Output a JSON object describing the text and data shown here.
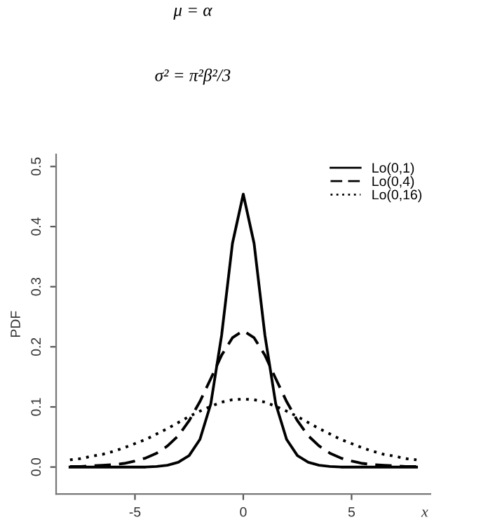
{
  "chart_data": {
    "type": "line",
    "annotations": [
      "μ = α",
      "σ² = π²β²/3"
    ],
    "xlabel": "x",
    "ylabel": "PDF",
    "x": [
      -8,
      -7.5,
      -7,
      -6.5,
      -6,
      -5.5,
      -5,
      -4.5,
      -4,
      -3.5,
      -3,
      -2.5,
      -2,
      -1.5,
      -1,
      -0.5,
      0,
      0.5,
      1,
      1.5,
      2,
      2.5,
      3,
      3.5,
      4,
      4.5,
      5,
      5.5,
      6,
      6.5,
      7,
      7.5,
      8
    ],
    "series": [
      {
        "name": "Lo(0,1)",
        "color": "#000000",
        "line_style": "solid",
        "values": [
          0,
          0,
          0,
          0,
          0,
          0,
          0,
          0,
          0.001,
          0.003,
          0.008,
          0.019,
          0.046,
          0.105,
          0.219,
          0.372,
          0.454,
          0.372,
          0.219,
          0.105,
          0.046,
          0.019,
          0.008,
          0.003,
          0.001,
          0,
          0,
          0,
          0,
          0,
          0,
          0,
          0
        ]
      },
      {
        "name": "Lo(0,4)",
        "color": "#000000",
        "line_style": "dashed",
        "values": [
          0.001,
          0.001,
          0.002,
          0.003,
          0.004,
          0.006,
          0.01,
          0.015,
          0.023,
          0.035,
          0.052,
          0.077,
          0.109,
          0.147,
          0.186,
          0.215,
          0.227,
          0.215,
          0.186,
          0.147,
          0.109,
          0.077,
          0.052,
          0.035,
          0.023,
          0.015,
          0.01,
          0.006,
          0.004,
          0.003,
          0.002,
          0.001,
          0.001
        ]
      },
      {
        "name": "Lo(0,16)",
        "color": "#000000",
        "line_style": "dotted",
        "values": [
          0.012,
          0.014,
          0.018,
          0.021,
          0.026,
          0.032,
          0.039,
          0.046,
          0.055,
          0.064,
          0.074,
          0.084,
          0.093,
          0.101,
          0.108,
          0.112,
          0.113,
          0.112,
          0.108,
          0.101,
          0.093,
          0.084,
          0.074,
          0.064,
          0.055,
          0.046,
          0.039,
          0.032,
          0.026,
          0.021,
          0.018,
          0.014,
          0.012
        ]
      }
    ],
    "xlim": [
      -8.64,
      8.64
    ],
    "ylim": [
      -0.045,
      0.52
    ],
    "xticks": [
      -5,
      0,
      5
    ],
    "yticks": [
      {
        "value": 0,
        "label": "0.0"
      },
      0.1,
      0.2,
      0.3,
      0.4,
      0.5
    ],
    "grid": false,
    "legend": "top right",
    "marker": "none"
  }
}
